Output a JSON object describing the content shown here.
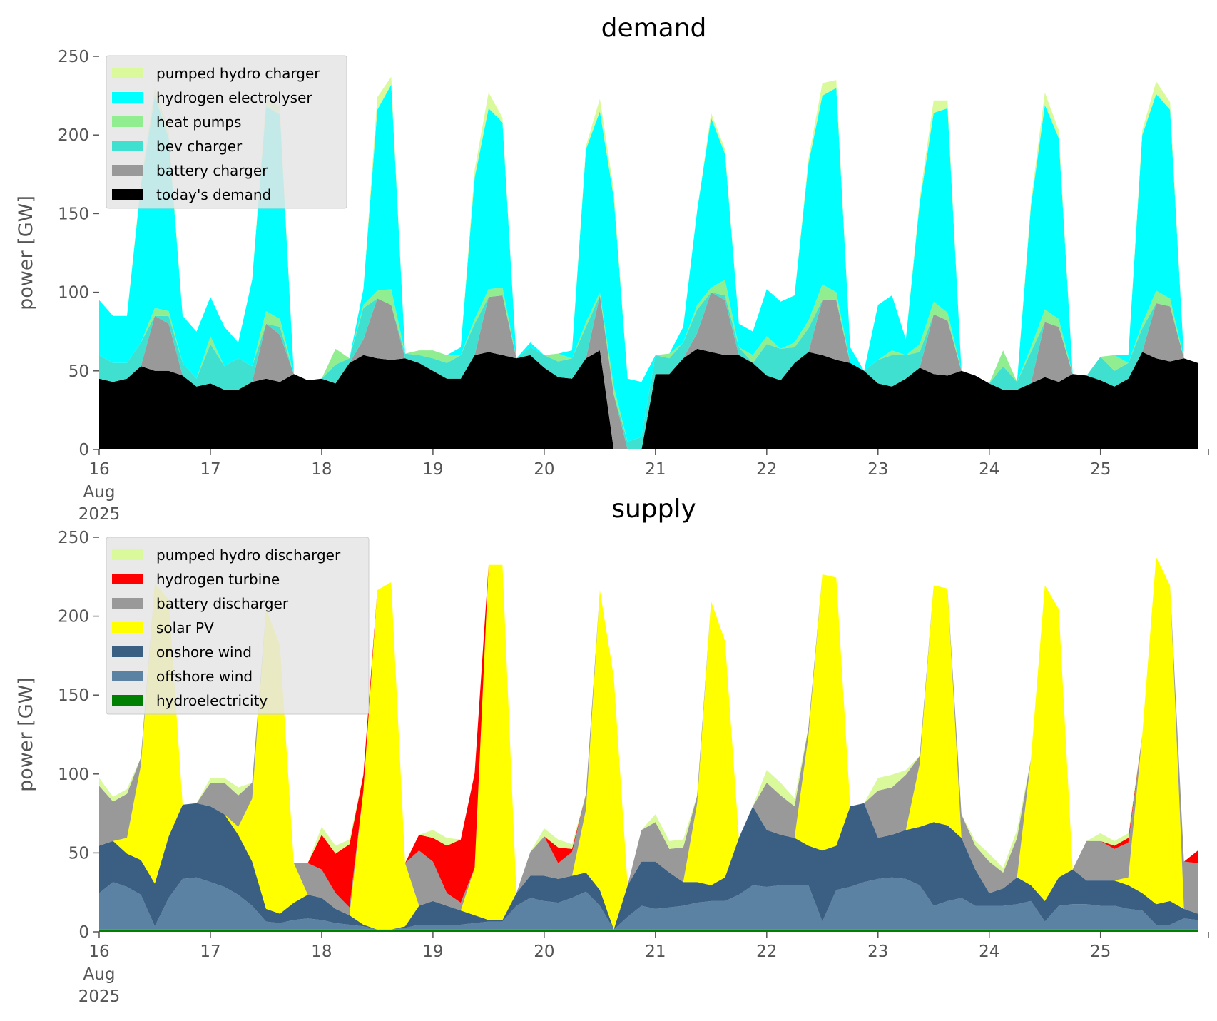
{
  "chart_data": [
    {
      "type": "area",
      "title": "demand",
      "ylabel": "power [GW]",
      "xlabel": "",
      "ylim": [
        0,
        250
      ],
      "yticks": [
        "0",
        "50",
        "100",
        "150",
        "200",
        "250"
      ],
      "x_start": "2025-08-16 00:00",
      "step_hours": 3,
      "xlim_days": [
        0,
        9.97
      ],
      "xticks": [
        "16",
        "17",
        "18",
        "19",
        "20",
        "21",
        "22",
        "23",
        "24",
        "25"
      ],
      "xtick_sub": [
        "Aug",
        "2025"
      ],
      "legend": "top-left",
      "series": [
        {
          "name": "today's demand",
          "color": "#000000",
          "values": [
            45,
            43,
            45,
            53,
            50,
            50,
            47,
            40,
            42,
            38,
            38,
            43,
            45,
            43,
            48,
            44,
            45,
            42,
            55,
            60,
            58,
            57,
            58,
            55,
            50,
            45,
            45,
            60,
            62,
            60,
            58,
            60,
            52,
            46,
            45,
            58,
            63,
            0,
            0,
            0,
            48,
            48,
            58,
            64,
            62,
            60,
            60,
            55,
            47,
            44,
            55,
            62,
            60,
            57,
            55,
            50,
            42,
            40,
            45,
            52,
            48,
            47,
            50,
            47,
            42,
            38,
            38,
            42,
            46,
            43,
            48,
            47,
            44,
            40,
            45,
            62,
            58,
            56,
            58,
            55
          ]
        },
        {
          "name": "battery charger",
          "color": "#999999",
          "values": [
            0,
            0,
            0,
            0,
            35,
            30,
            0,
            0,
            0,
            0,
            0,
            0,
            35,
            30,
            0,
            0,
            0,
            0,
            0,
            10,
            38,
            35,
            0,
            0,
            0,
            0,
            0,
            0,
            35,
            38,
            0,
            0,
            0,
            0,
            0,
            0,
            35,
            35,
            0,
            0,
            0,
            0,
            0,
            10,
            38,
            35,
            0,
            0,
            0,
            0,
            0,
            0,
            35,
            38,
            0,
            0,
            0,
            0,
            0,
            0,
            38,
            35,
            0,
            0,
            0,
            0,
            0,
            0,
            35,
            35,
            0,
            0,
            0,
            0,
            0,
            0,
            35,
            35,
            0,
            0
          ]
        },
        {
          "name": "bev charger",
          "color": "#40e0d0",
          "values": [
            15,
            12,
            10,
            15,
            0,
            5,
            8,
            5,
            25,
            15,
            20,
            10,
            0,
            5,
            0,
            0,
            0,
            12,
            3,
            20,
            0,
            0,
            3,
            5,
            8,
            10,
            15,
            20,
            0,
            0,
            0,
            5,
            8,
            10,
            13,
            20,
            0,
            0,
            5,
            8,
            12,
            10,
            10,
            15,
            0,
            3,
            5,
            0,
            20,
            20,
            10,
            15,
            0,
            0,
            0,
            0,
            15,
            20,
            15,
            10,
            0,
            0,
            0,
            0,
            0,
            15,
            5,
            20,
            0,
            0,
            0,
            0,
            15,
            10,
            10,
            15,
            0,
            0,
            0,
            0
          ]
        },
        {
          "name": "heat pumps",
          "color": "#90ee90",
          "values": [
            0,
            0,
            0,
            0,
            5,
            3,
            0,
            0,
            5,
            0,
            0,
            0,
            8,
            5,
            0,
            0,
            0,
            10,
            0,
            2,
            5,
            10,
            0,
            3,
            5,
            5,
            0,
            3,
            5,
            5,
            0,
            0,
            0,
            5,
            0,
            3,
            2,
            5,
            0,
            0,
            0,
            3,
            0,
            3,
            3,
            10,
            0,
            5,
            5,
            0,
            3,
            5,
            10,
            5,
            0,
            0,
            0,
            3,
            0,
            5,
            8,
            5,
            0,
            0,
            0,
            10,
            0,
            3,
            8,
            5,
            0,
            0,
            0,
            10,
            0,
            3,
            8,
            5,
            0,
            0
          ]
        },
        {
          "name": "hydrogen electrolyser",
          "color": "#00ffff",
          "values": [
            35,
            30,
            30,
            100,
            135,
            110,
            30,
            30,
            25,
            25,
            10,
            55,
            130,
            130,
            0,
            0,
            0,
            0,
            0,
            10,
            115,
            130,
            0,
            0,
            0,
            0,
            5,
            90,
            115,
            105,
            0,
            3,
            0,
            0,
            5,
            110,
            115,
            120,
            40,
            35,
            0,
            0,
            10,
            60,
            108,
            80,
            15,
            15,
            30,
            30,
            30,
            100,
            120,
            130,
            10,
            0,
            35,
            35,
            10,
            90,
            120,
            130,
            0,
            0,
            0,
            0,
            0,
            90,
            130,
            115,
            0,
            0,
            0,
            0,
            5,
            120,
            125,
            120,
            0,
            0
          ]
        },
        {
          "name": "pumped hydro charger",
          "color": "#d9f99b",
          "values": [
            0,
            0,
            0,
            2,
            5,
            5,
            0,
            0,
            0,
            0,
            0,
            0,
            5,
            5,
            0,
            0,
            0,
            0,
            0,
            0,
            8,
            5,
            0,
            0,
            0,
            0,
            0,
            5,
            10,
            3,
            0,
            0,
            0,
            0,
            0,
            2,
            8,
            5,
            0,
            0,
            0,
            0,
            0,
            0,
            3,
            3,
            0,
            0,
            0,
            0,
            0,
            3,
            8,
            5,
            0,
            0,
            0,
            0,
            0,
            3,
            8,
            5,
            0,
            0,
            0,
            0,
            0,
            3,
            8,
            5,
            0,
            0,
            0,
            0,
            0,
            3,
            8,
            5,
            0,
            0
          ]
        }
      ]
    },
    {
      "type": "area",
      "title": "supply",
      "ylabel": "power [GW]",
      "xlabel": "",
      "ylim": [
        0,
        250
      ],
      "yticks": [
        "0",
        "50",
        "100",
        "150",
        "200",
        "250"
      ],
      "x_start": "2025-08-16 00:00",
      "step_hours": 3,
      "xlim_days": [
        0,
        9.97
      ],
      "xticks": [
        "16",
        "17",
        "18",
        "19",
        "20",
        "21",
        "22",
        "23",
        "24",
        "25"
      ],
      "xtick_sub": [
        "Aug",
        "2025"
      ],
      "legend": "top-left",
      "series": [
        {
          "name": "hydroelectricity",
          "color": "#008000",
          "values": [
            1.5,
            1.5,
            1.5,
            1.5,
            1.5,
            1.5,
            1.5,
            1.5,
            1.5,
            1.5,
            1.5,
            1.5,
            1.5,
            1.5,
            1.5,
            1.5,
            1.5,
            1.5,
            1.5,
            1.5,
            1.5,
            1.5,
            1.5,
            1.5,
            1.5,
            1.5,
            1.5,
            1.5,
            1.5,
            1.5,
            1.5,
            1.5,
            1.5,
            1.5,
            1.5,
            1.5,
            1.5,
            1.5,
            1.5,
            1.5,
            1.5,
            1.5,
            1.5,
            1.5,
            1.5,
            1.5,
            1.5,
            1.5,
            1.5,
            1.5,
            1.5,
            1.5,
            1.5,
            1.5,
            1.5,
            1.5,
            1.5,
            1.5,
            1.5,
            1.5,
            1.5,
            1.5,
            1.5,
            1.5,
            1.5,
            1.5,
            1.5,
            1.5,
            1.5,
            1.5,
            1.5,
            1.5,
            1.5,
            1.5,
            1.5,
            1.5,
            1.5,
            1.5,
            1.5,
            1.5
          ]
        },
        {
          "name": "offshore wind",
          "color": "#5b82a3",
          "values": [
            23,
            30,
            27,
            22,
            2,
            20,
            32,
            33,
            30,
            27,
            22,
            15,
            5,
            4,
            6,
            7,
            6,
            4,
            3,
            2,
            0,
            0,
            1,
            3,
            3,
            3,
            3,
            4,
            5,
            5,
            15,
            20,
            18,
            17,
            20,
            24,
            15,
            0,
            8,
            15,
            13,
            14,
            15,
            17,
            18,
            18,
            22,
            28,
            27,
            28,
            28,
            28,
            5,
            25,
            27,
            30,
            32,
            33,
            32,
            28,
            15,
            18,
            20,
            15,
            15,
            15,
            16,
            18,
            5,
            15,
            16,
            16,
            15,
            15,
            13,
            12,
            3,
            3,
            7,
            6
          ]
        },
        {
          "name": "onshore wind",
          "color": "#3a5f83",
          "values": [
            30,
            26,
            21,
            22,
            27,
            39,
            47,
            47,
            48,
            46,
            38,
            28,
            8,
            6,
            11,
            15,
            14,
            9,
            6,
            1,
            0,
            0,
            1,
            12,
            15,
            12,
            9,
            5,
            1,
            1,
            8,
            14,
            16,
            15,
            14,
            12,
            10,
            0,
            20,
            28,
            30,
            22,
            15,
            13,
            10,
            15,
            36,
            50,
            36,
            32,
            30,
            25,
            45,
            28,
            51,
            50,
            26,
            27,
            31,
            37,
            53,
            48,
            38,
            23,
            8,
            11,
            17,
            10,
            13,
            18,
            22,
            15,
            16,
            16,
            15,
            11,
            13,
            15,
            6,
            4
          ]
        },
        {
          "name": "solar PV",
          "color": "#ffff00",
          "values": [
            0,
            0,
            10,
            60,
            190,
            150,
            0,
            0,
            0,
            0,
            5,
            40,
            190,
            170,
            25,
            0,
            0,
            0,
            0,
            85,
            215,
            220,
            40,
            0,
            0,
            0,
            0,
            30,
            225,
            225,
            0,
            0,
            0,
            0,
            0,
            40,
            190,
            160,
            0,
            0,
            0,
            0,
            0,
            50,
            180,
            150,
            0,
            0,
            0,
            0,
            0,
            70,
            175,
            170,
            0,
            0,
            0,
            0,
            0,
            40,
            150,
            150,
            0,
            0,
            0,
            0,
            0,
            80,
            200,
            170,
            0,
            0,
            0,
            0,
            5,
            100,
            220,
            200,
            0,
            0
          ]
        },
        {
          "name": "battery discharger",
          "color": "#999999",
          "values": [
            38,
            25,
            28,
            5,
            0,
            0,
            0,
            0,
            15,
            20,
            20,
            10,
            0,
            0,
            0,
            20,
            18,
            10,
            5,
            0,
            0,
            0,
            0,
            35,
            25,
            8,
            5,
            0,
            0,
            0,
            0,
            15,
            25,
            10,
            15,
            10,
            0,
            0,
            0,
            20,
            25,
            15,
            22,
            5,
            0,
            0,
            0,
            0,
            30,
            25,
            20,
            5,
            0,
            0,
            0,
            0,
            30,
            30,
            35,
            5,
            0,
            0,
            15,
            15,
            20,
            10,
            25,
            0,
            0,
            0,
            0,
            25,
            25,
            20,
            22,
            0,
            0,
            0,
            30,
            32
          ]
        },
        {
          "name": "hydrogen turbine",
          "color": "#ff0000",
          "values": [
            0,
            0,
            0,
            0,
            0,
            0,
            0,
            0,
            0,
            0,
            0,
            0,
            0,
            0,
            0,
            0,
            22,
            25,
            40,
            10,
            0,
            0,
            0,
            10,
            15,
            30,
            40,
            60,
            0,
            0,
            0,
            0,
            0,
            10,
            2,
            0,
            0,
            0,
            0,
            0,
            0,
            0,
            0,
            0,
            0,
            0,
            0,
            0,
            0,
            0,
            0,
            0,
            0,
            0,
            0,
            0,
            0,
            0,
            0,
            0,
            0,
            0,
            0,
            0,
            0,
            0,
            0,
            0,
            0,
            0,
            0,
            0,
            0,
            2,
            3,
            0,
            0,
            0,
            0,
            8
          ]
        },
        {
          "name": "pumped hydro discharger",
          "color": "#d9f99b",
          "values": [
            5,
            3,
            3,
            0,
            0,
            0,
            0,
            0,
            3,
            3,
            5,
            0,
            0,
            0,
            0,
            0,
            5,
            5,
            3,
            0,
            0,
            0,
            0,
            0,
            5,
            5,
            0,
            0,
            0,
            0,
            0,
            0,
            5,
            5,
            3,
            0,
            0,
            0,
            0,
            0,
            5,
            5,
            5,
            0,
            0,
            0,
            0,
            0,
            8,
            8,
            5,
            0,
            0,
            0,
            0,
            0,
            8,
            8,
            3,
            0,
            0,
            0,
            0,
            3,
            5,
            3,
            5,
            0,
            0,
            0,
            0,
            0,
            5,
            3,
            3,
            0,
            0,
            0,
            0,
            0
          ]
        }
      ]
    }
  ]
}
